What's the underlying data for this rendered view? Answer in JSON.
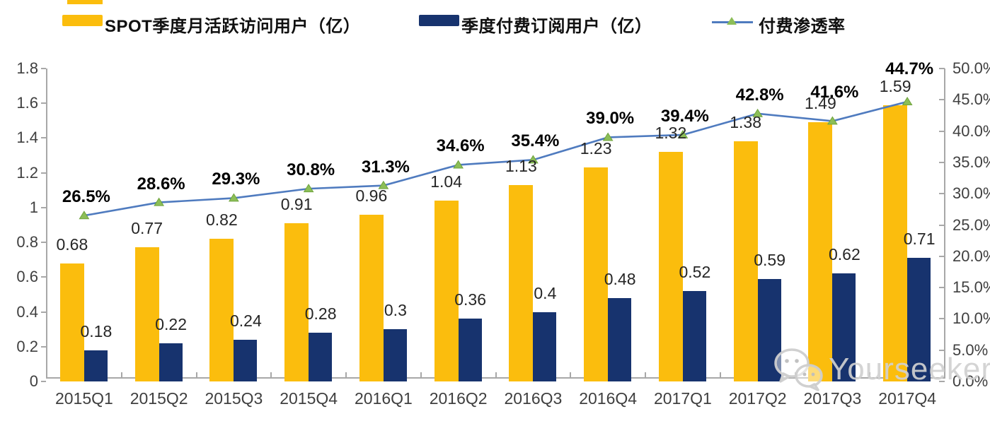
{
  "watermark": {
    "text": "Yourseeker",
    "icon": "wechat-icon"
  },
  "chart_data": {
    "type": "bar+line combo",
    "title": "",
    "categories": [
      "2015Q1",
      "2015Q2",
      "2015Q3",
      "2015Q4",
      "2016Q1",
      "2016Q2",
      "2016Q3",
      "2016Q4",
      "2017Q1",
      "2017Q2",
      "2017Q3",
      "2017Q4"
    ],
    "series": [
      {
        "name": "SPOT季度月活跃访问用户（亿）",
        "type": "bar",
        "axis": "left",
        "color": "#FBBD0D",
        "values": [
          0.68,
          0.77,
          0.82,
          0.91,
          0.96,
          1.04,
          1.13,
          1.23,
          1.32,
          1.38,
          1.49,
          1.59
        ],
        "labels": [
          "0.68",
          "0.77",
          "0.82",
          "0.91",
          "0.96",
          "1.04",
          "1.13",
          "1.23",
          "1.32",
          "1.38",
          "1.49",
          "1.59"
        ]
      },
      {
        "name": "季度付费订阅用户（亿）",
        "type": "bar",
        "axis": "left",
        "color": "#17336E",
        "values": [
          0.18,
          0.22,
          0.24,
          0.28,
          0.3,
          0.36,
          0.4,
          0.48,
          0.52,
          0.59,
          0.62,
          0.71
        ],
        "labels": [
          "0.18",
          "0.22",
          "0.24",
          "0.28",
          "0.3",
          "0.36",
          "0.4",
          "0.48",
          "0.52",
          "0.59",
          "0.62",
          "0.71"
        ]
      },
      {
        "name": "付费渗透率",
        "type": "line",
        "axis": "right",
        "color": "#4F7BBF",
        "marker": "triangle",
        "marker_color": "#8CBE58",
        "marker_edge_color": "#6FA43C",
        "values": [
          26.5,
          28.6,
          29.3,
          30.8,
          31.3,
          34.6,
          35.4,
          39.0,
          39.4,
          42.8,
          41.6,
          44.7
        ],
        "labels": [
          "26.5%",
          "28.6%",
          "29.3%",
          "30.8%",
          "31.3%",
          "34.6%",
          "35.4%",
          "39.0%",
          "39.4%",
          "42.8%",
          "41.6%",
          "44.7%"
        ],
        "label_offsets_y": [
          -26,
          -26,
          -26,
          -26,
          -26,
          -26,
          -26,
          -26,
          -26,
          -26,
          -40,
          -46
        ]
      }
    ],
    "left_axis": {
      "min": 0,
      "max": 1.8,
      "ticks": [
        "0",
        "0.2",
        "0.4",
        "0.6",
        "0.8",
        "1",
        "1.2",
        "1.4",
        "1.6",
        "1.8"
      ]
    },
    "right_axis": {
      "min": 0,
      "max": 50.0,
      "ticks": [
        "0.0%",
        "5.0%",
        "10.0%",
        "15.0%",
        "20.0%",
        "25.0%",
        "30.0%",
        "35.0%",
        "40.0%",
        "45.0%",
        "50.0%"
      ]
    },
    "grid": "off",
    "legend_position": "top",
    "colors": {
      "axis": "#A8A8A8",
      "tick_label": "#3F3F3F",
      "value_label": "#262626",
      "rate_label": "#000000",
      "watermark": "#D0D0D0"
    }
  }
}
